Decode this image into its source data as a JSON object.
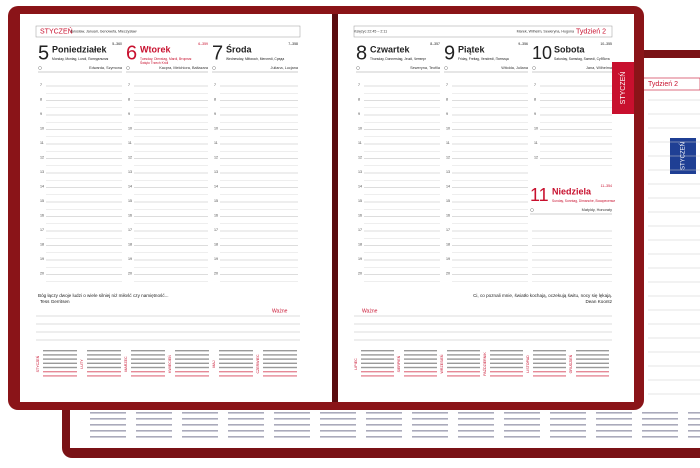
{
  "back_page": {
    "week": "Tydzień 2",
    "tab": "STYCZEŃ"
  },
  "hours": [
    7,
    8,
    9,
    10,
    11,
    12,
    13,
    14,
    15,
    16,
    17,
    18,
    19,
    20
  ],
  "left_page": {
    "month_tab": "STYCZEŃ",
    "header_names": "Jarosław, Januari, Genowefa, Mieczysław",
    "days": [
      {
        "number": "5",
        "name": "Poniedziałek",
        "day_of_year": "5–360",
        "subtitle": "Monday, Montag, Lundi, Понедельник",
        "saints": "Edwarda, Szymona",
        "holiday": false
      },
      {
        "number": "6",
        "name": "Wtorek",
        "day_of_year": "6–359",
        "subtitle": "Tuesday, Dienstag, Mardi, Вторник",
        "note": "Święto Trzech Króli",
        "saints": "Kacpra, Melchiora, Baltazara",
        "holiday": true
      },
      {
        "number": "7",
        "name": "Środa",
        "day_of_year": "7–358",
        "subtitle": "Wednesday, Mittwoch, Mercredi, Среда",
        "saints": "Juliana, Lucjana",
        "holiday": false
      }
    ],
    "quote": "Bóg łączy dwoje ludzi o wiele silniej niż miłość czy namiętność...",
    "quote_author": "Tess Gerritsen",
    "important": "Ważne",
    "months": [
      "STYCZEŃ",
      "LUTY",
      "MARZEC",
      "KWIECIEŃ",
      "MAJ",
      "CZERWIEC"
    ]
  },
  "right_page": {
    "header_left": "Księżyc 22:45 – 2:11",
    "header_names": "Marek, Wilhelm, Seweryna, Hugona",
    "week": "Tydzień 2",
    "days": [
      {
        "number": "8",
        "name": "Czwartek",
        "day_of_year": "8–357",
        "subtitle": "Thursday, Donnerstag, Jeudi, Четверг",
        "saints": "Seweryna, Teofila",
        "holiday": false
      },
      {
        "number": "9",
        "name": "Piątek",
        "day_of_year": "9–356",
        "subtitle": "Friday, Freitag, Vendredi, Пятница",
        "saints": "Witolda, Juliana",
        "holiday": false
      },
      {
        "number": "10",
        "name": "Sobota",
        "day_of_year": "10–355",
        "subtitle": "Saturday, Samstag, Samedi, Суббота",
        "saints": "Jana, Wilhelma",
        "holiday": false
      }
    ],
    "sunday": {
      "number": "11",
      "name": "Niedziela",
      "day_of_year": "11–354",
      "subtitle": "Sunday, Sonntag, Dimanche, Воскресенье",
      "saints": "Matyldy, Honoraty",
      "holiday": true
    },
    "quote": "Ci, co poznali mnie, światło kochają, oczekują świtu, nocy się lękają.",
    "quote_author": "Dean Koontz",
    "important": "Ważne",
    "months": [
      "LIPIEC",
      "SIERPIEŃ",
      "WRZESIEŃ",
      "PAŹDZIERNIK",
      "LISTOPAD",
      "GRUDZIEŃ"
    ]
  }
}
